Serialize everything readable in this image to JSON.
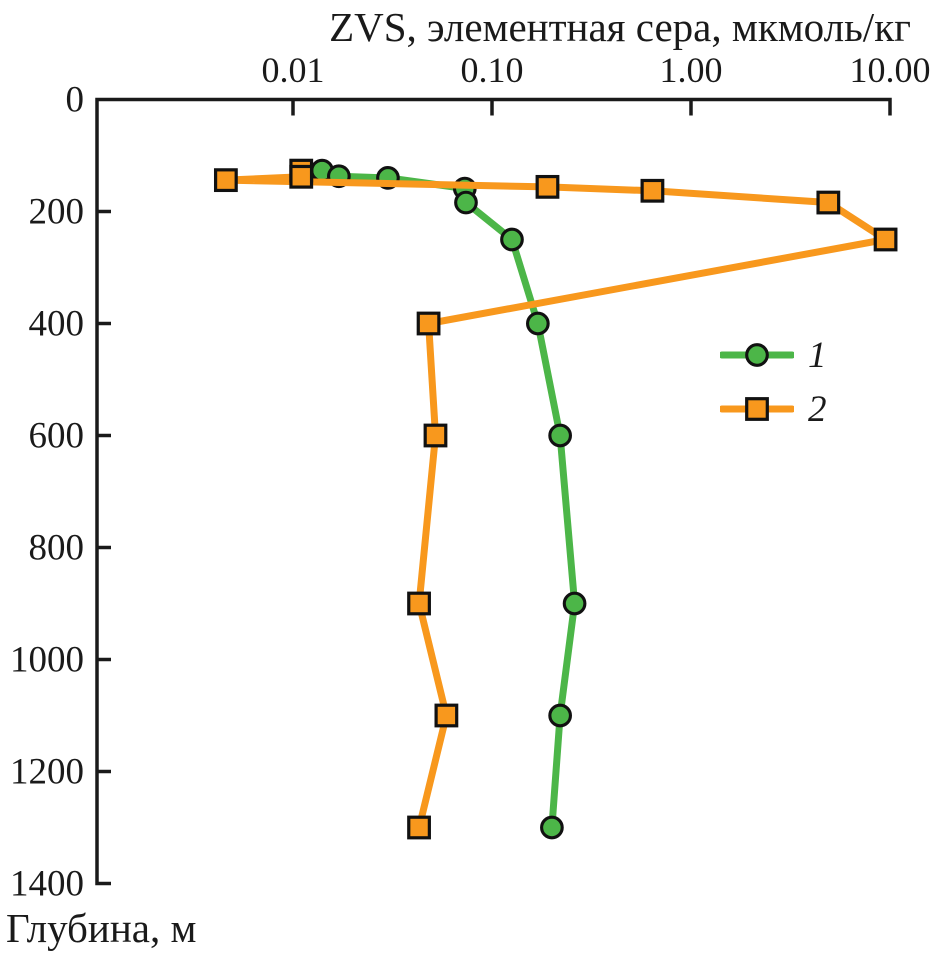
{
  "figure": {
    "title": "ZVS, элементная сера, мкмоль/кг",
    "depth_axis_label": "Глубина, м"
  },
  "legend": {
    "items": [
      {
        "label": "1",
        "marker": "circle",
        "color": "#4CB648"
      },
      {
        "label": "2",
        "marker": "square",
        "color": "#F8981D"
      }
    ]
  },
  "chart_data": {
    "type": "line",
    "title": "ZVS, элементная сера, мкмоль/кг",
    "xlabel": "ZVS, элементная сера, мкмоль/кг",
    "ylabel": "Глубина, м",
    "x_scale": "log",
    "x_range": [
      0.001,
      10
    ],
    "x_ticks": [
      0.01,
      0.1,
      1,
      10
    ],
    "x_tick_labels": [
      "0.01",
      "0.10",
      "1.00",
      "10.00"
    ],
    "y_range": [
      0,
      1400
    ],
    "y_ticks": [
      0,
      200,
      400,
      600,
      800,
      1000,
      1200,
      1400
    ],
    "y_inverted": true,
    "grid": false,
    "legend_position": "inside-right",
    "axis_color": "#1a1a1a",
    "marker_edge_color": "#111111",
    "series": [
      {
        "name": "1",
        "marker": "circle",
        "color": "#4CB648",
        "points_value_depth": [
          [
            0.014,
            127
          ],
          [
            0.017,
            137
          ],
          [
            0.03,
            140
          ],
          [
            0.073,
            159
          ],
          [
            0.074,
            184
          ],
          [
            0.126,
            250
          ],
          [
            0.17,
            400
          ],
          [
            0.22,
            600
          ],
          [
            0.26,
            900
          ],
          [
            0.22,
            1100
          ],
          [
            0.2,
            1300
          ]
        ]
      },
      {
        "name": "2",
        "marker": "square",
        "color": "#F8981D",
        "points_value_depth": [
          [
            0.011,
            127
          ],
          [
            0.011,
            138
          ],
          [
            0.0046,
            144
          ],
          [
            0.19,
            156
          ],
          [
            0.64,
            163
          ],
          [
            4.9,
            184
          ],
          [
            9.5,
            250
          ],
          [
            0.048,
            400
          ],
          [
            0.052,
            600
          ],
          [
            0.043,
            900
          ],
          [
            0.059,
            1100
          ],
          [
            0.043,
            1300
          ]
        ]
      }
    ]
  }
}
